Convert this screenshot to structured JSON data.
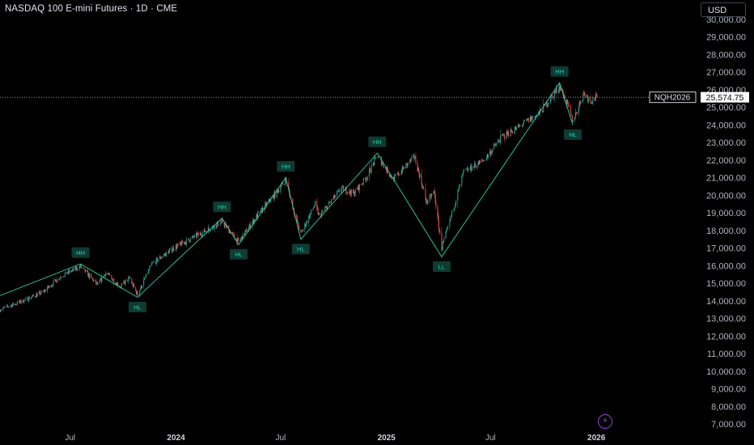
{
  "header": {
    "title": "NASDAQ 100 E-mini Futures · 1D · CME",
    "currency": "USD"
  },
  "price_tag": {
    "symbol": "NQH2026",
    "price": "25,574.75",
    "price_value": 25574.75
  },
  "colors": {
    "up": "#26a69a",
    "down": "#ef5350",
    "zigzag": "#2bd1a8",
    "background": "#000000"
  },
  "icons": {
    "bottom": "lightning-icon"
  },
  "chart_data": {
    "type": "candlestick",
    "title": "NASDAQ 100 E-mini Futures · 1D · CME",
    "x_ticks": [
      "Jul",
      "2024",
      "Jul",
      "2025",
      "Jul",
      "2026"
    ],
    "x_tick_dates": [
      "2023-07-01",
      "2024-01-01",
      "2024-07-01",
      "2025-01-01",
      "2025-07-01",
      "2026-01-01"
    ],
    "y_ticks": [
      7000,
      8000,
      9000,
      10000,
      11000,
      12000,
      13000,
      14000,
      15000,
      16000,
      17000,
      18000,
      19000,
      20000,
      21000,
      22000,
      23000,
      24000,
      25000,
      26000,
      27000,
      28000,
      29000,
      30000
    ],
    "y_tick_labels": [
      "7,000.00",
      "8,000.00",
      "9,000.00",
      "10,000.00",
      "11,000.00",
      "12,000.00",
      "13,000.00",
      "14,000.00",
      "15,000.00",
      "16,000.00",
      "17,000.00",
      "18,000.00",
      "19,000.00",
      "20,000.00",
      "21,000.00",
      "22,000.00",
      "23,000.00",
      "24,000.00",
      "25,000.00",
      "26,000.00",
      "27,000.00",
      "28,000.00",
      "29,000.00",
      "30,000.00"
    ],
    "ylim": [
      6700,
      30400
    ],
    "xlim": [
      "2023-03-01",
      "2026-06-20"
    ],
    "last_price": 25574.75,
    "zigzag": [
      {
        "date": "2023-03-01",
        "value": 14300,
        "label": ""
      },
      {
        "date": "2023-07-19",
        "value": 16100,
        "label": "HH"
      },
      {
        "date": "2023-10-26",
        "value": 14200,
        "label": "HL"
      },
      {
        "date": "2024-03-21",
        "value": 18700,
        "label": "HH"
      },
      {
        "date": "2024-04-19",
        "value": 17200,
        "label": "HL"
      },
      {
        "date": "2024-07-10",
        "value": 21000,
        "label": "HH"
      },
      {
        "date": "2024-08-05",
        "value": 17500,
        "label": "HL"
      },
      {
        "date": "2024-12-16",
        "value": 22400,
        "label": "HH"
      },
      {
        "date": "2025-04-07",
        "value": 16500,
        "label": "LL"
      },
      {
        "date": "2025-10-29",
        "value": 26400,
        "label": "HH"
      },
      {
        "date": "2025-11-21",
        "value": 24000,
        "label": "HL"
      }
    ],
    "price_path": [
      {
        "date": "2023-03-01",
        "value": 13500
      },
      {
        "date": "2023-04-10",
        "value": 14000
      },
      {
        "date": "2023-05-15",
        "value": 14500
      },
      {
        "date": "2023-06-15",
        "value": 15400
      },
      {
        "date": "2023-07-19",
        "value": 15950
      },
      {
        "date": "2023-08-18",
        "value": 14900
      },
      {
        "date": "2023-09-01",
        "value": 15600
      },
      {
        "date": "2023-09-26",
        "value": 14800
      },
      {
        "date": "2023-10-12",
        "value": 15300
      },
      {
        "date": "2023-10-26",
        "value": 14350
      },
      {
        "date": "2023-11-20",
        "value": 16100
      },
      {
        "date": "2023-12-28",
        "value": 17000
      },
      {
        "date": "2024-01-31",
        "value": 17600
      },
      {
        "date": "2024-02-28",
        "value": 18100
      },
      {
        "date": "2024-03-21",
        "value": 18500
      },
      {
        "date": "2024-04-19",
        "value": 17350
      },
      {
        "date": "2024-05-20",
        "value": 18800
      },
      {
        "date": "2024-06-20",
        "value": 20000
      },
      {
        "date": "2024-07-10",
        "value": 20900
      },
      {
        "date": "2024-07-25",
        "value": 19000
      },
      {
        "date": "2024-08-05",
        "value": 17800
      },
      {
        "date": "2024-08-30",
        "value": 19500
      },
      {
        "date": "2024-09-06",
        "value": 18800
      },
      {
        "date": "2024-10-15",
        "value": 20400
      },
      {
        "date": "2024-11-05",
        "value": 20100
      },
      {
        "date": "2024-11-29",
        "value": 21100
      },
      {
        "date": "2024-12-16",
        "value": 22250
      },
      {
        "date": "2025-01-13",
        "value": 20900
      },
      {
        "date": "2025-02-19",
        "value": 22200
      },
      {
        "date": "2025-03-12",
        "value": 19600
      },
      {
        "date": "2025-03-25",
        "value": 20200
      },
      {
        "date": "2025-04-07",
        "value": 17000
      },
      {
        "date": "2025-04-21",
        "value": 18500
      },
      {
        "date": "2025-05-15",
        "value": 21300
      },
      {
        "date": "2025-06-20",
        "value": 22000
      },
      {
        "date": "2025-07-20",
        "value": 23300
      },
      {
        "date": "2025-08-15",
        "value": 23800
      },
      {
        "date": "2025-09-25",
        "value": 24700
      },
      {
        "date": "2025-10-29",
        "value": 26200
      },
      {
        "date": "2025-11-10",
        "value": 25300
      },
      {
        "date": "2025-11-21",
        "value": 24200
      },
      {
        "date": "2025-12-10",
        "value": 25800
      },
      {
        "date": "2025-12-22",
        "value": 25400
      },
      {
        "date": "2026-01-02",
        "value": 25574.75
      }
    ]
  }
}
